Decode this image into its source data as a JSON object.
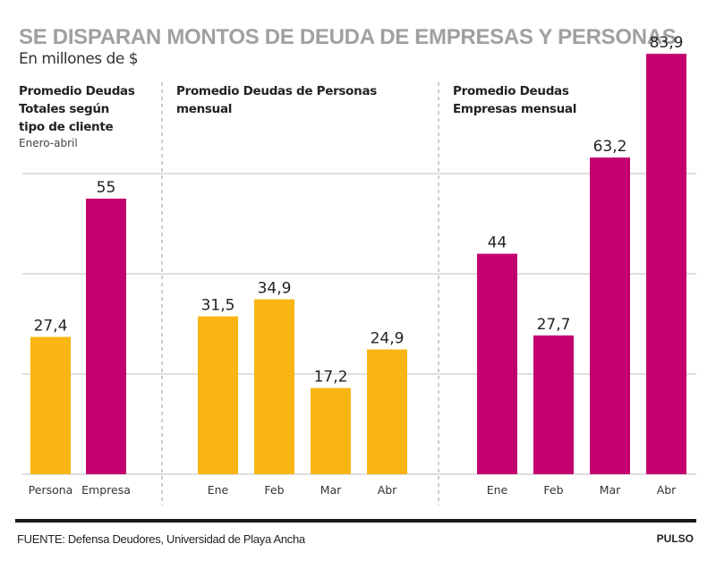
{
  "header": {
    "title": "SE DISPARAN MONTOS DE DEUDA DE EMPRESAS Y PERSONAS",
    "subtitle": "En millones de $"
  },
  "colors": {
    "personas": "#f9b513",
    "empresas": "#c4006f",
    "grid": "#cccccc",
    "title": "#a0a0a0"
  },
  "chart_data": [
    {
      "type": "bar",
      "title_lines": [
        "Promedio Deudas",
        "Totales según",
        "tipo de cliente"
      ],
      "note": "Enero-abril",
      "categories": [
        "Persona",
        "Empresa"
      ],
      "values": [
        27.4,
        55
      ],
      "labels": [
        "27,4",
        "55"
      ],
      "bar_colors": [
        "#f9b513",
        "#c4006f"
      ],
      "ylim": [
        0,
        85
      ],
      "gridlines": [
        20,
        40,
        60
      ]
    },
    {
      "type": "bar",
      "title_lines": [
        "Promedio Deudas de Personas",
        "mensual"
      ],
      "categories": [
        "Ene",
        "Feb",
        "Mar",
        "Abr"
      ],
      "values": [
        31.5,
        34.9,
        17.2,
        24.9
      ],
      "labels": [
        "31,5",
        "34,9",
        "17,2",
        "24,9"
      ],
      "bar_colors": [
        "#f9b513",
        "#f9b513",
        "#f9b513",
        "#f9b513"
      ],
      "ylim": [
        0,
        85
      ],
      "gridlines": [
        20,
        40,
        60
      ]
    },
    {
      "type": "bar",
      "title_lines": [
        "Promedio Deudas",
        "Empresas mensual"
      ],
      "categories": [
        "Ene",
        "Feb",
        "Mar",
        "Abr"
      ],
      "values": [
        44,
        27.7,
        63.2,
        83.9
      ],
      "labels": [
        "44",
        "27,7",
        "63,2",
        "83,9"
      ],
      "bar_colors": [
        "#c4006f",
        "#c4006f",
        "#c4006f",
        "#c4006f"
      ],
      "ylim": [
        0,
        85
      ],
      "gridlines": [
        20,
        40,
        60
      ]
    }
  ],
  "footer": {
    "source": "FUENTE: Defensa Deudores, Universidad de Playa Ancha",
    "brand": "PULSO"
  }
}
